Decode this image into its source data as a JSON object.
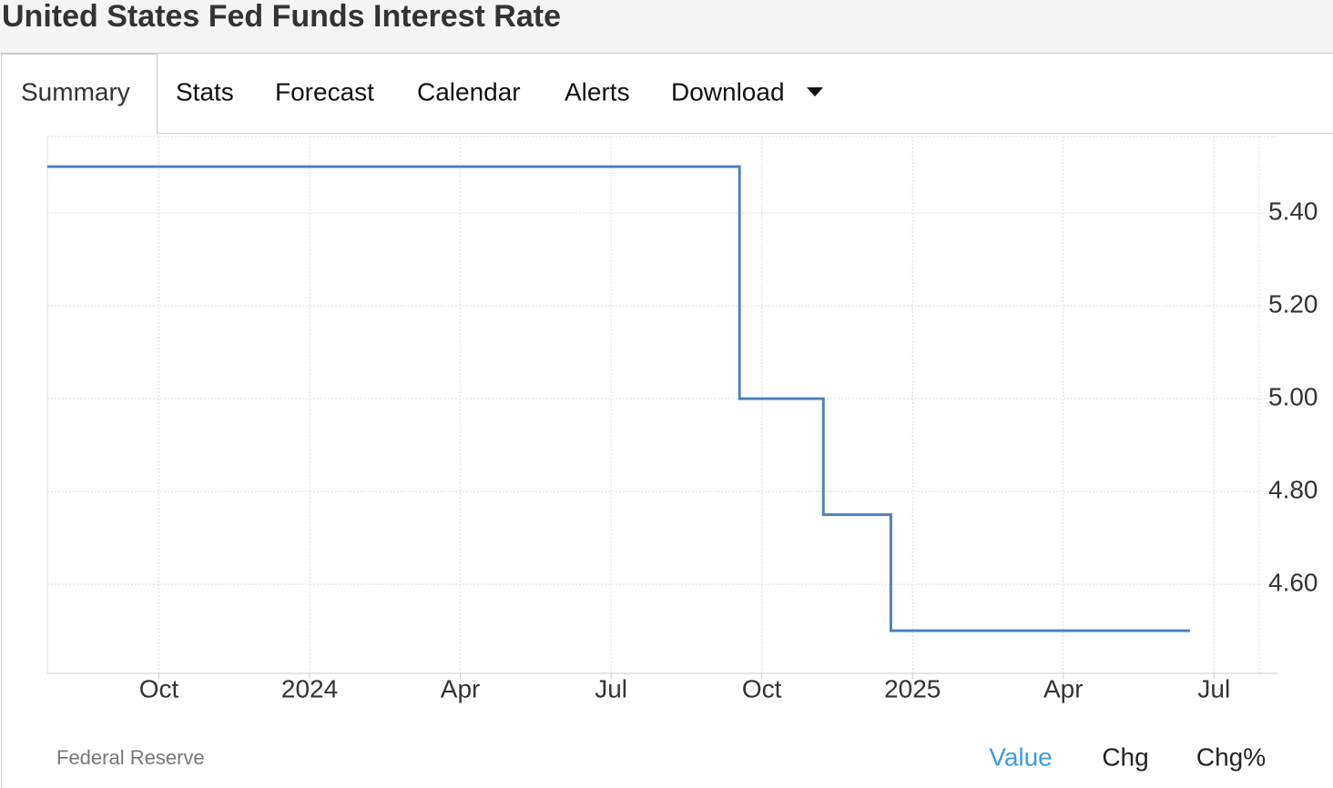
{
  "header": {
    "title": "United States Fed Funds Interest Rate"
  },
  "tabs": [
    "Summary",
    "Stats",
    "Forecast",
    "Calendar",
    "Alerts",
    "Download"
  ],
  "active_tab": 0,
  "chart_data": {
    "type": "line",
    "drawstyle": "steps-post",
    "x": [
      2023.565,
      2024.713,
      2024.852,
      2024.964,
      2025.46
    ],
    "series": [
      {
        "color": "#5182bb",
        "values": [
          5.5,
          5.0,
          4.75,
          4.5,
          4.5
        ]
      }
    ],
    "xlim": [
      2023.565,
      2025.575
    ],
    "xticks": [
      {
        "value": 2023.75,
        "label": "Oct"
      },
      2024,
      {
        "value": 2024.25,
        "label": "Apr"
      },
      {
        "value": 2024.5,
        "label": "Jul"
      },
      {
        "value": 2024.75,
        "label": "Oct"
      },
      2025,
      {
        "value": 2025.25,
        "label": "Apr"
      },
      {
        "value": 2025.5,
        "label": "Jul"
      }
    ],
    "ylim": [
      4.408,
      5.565
    ],
    "yticks": [
      {
        "value": 4.6,
        "label": "4.60"
      },
      {
        "value": 4.8,
        "label": "4.80"
      },
      {
        "value": 5.0,
        "label": "5.00"
      },
      {
        "value": 5.2,
        "label": "5.20"
      },
      {
        "value": 5.4,
        "label": "5.40"
      }
    ],
    "grid": true
  },
  "footer": {
    "source": "Federal Reserve",
    "options": [
      "Value",
      "Chg",
      "Chg%"
    ],
    "active_option": 0
  }
}
